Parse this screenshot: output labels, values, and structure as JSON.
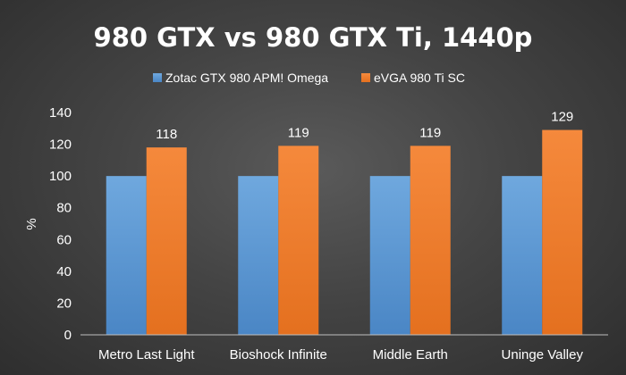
{
  "chart_data": {
    "type": "bar",
    "title": "980 GTX vs 980 GTX Ti, 1440p",
    "ylabel": "%",
    "xlabel": "",
    "ylim": [
      0,
      140
    ],
    "yticks": [
      0,
      20,
      40,
      60,
      80,
      100,
      120,
      140
    ],
    "categories": [
      "Metro Last Light",
      "Bioshock Infinite",
      "Middle Earth",
      "Uninge Valley"
    ],
    "series": [
      {
        "name": "Zotac GTX 980 APM! Omega",
        "values": [
          100,
          100,
          100,
          100
        ],
        "color": "#5b9bd5",
        "data_labels": false
      },
      {
        "name": "eVGA 980 Ti SC",
        "values": [
          118,
          119,
          119,
          129
        ],
        "color": "#ed7d31",
        "data_labels": true
      }
    ],
    "grid": false,
    "legend_position": "top"
  }
}
